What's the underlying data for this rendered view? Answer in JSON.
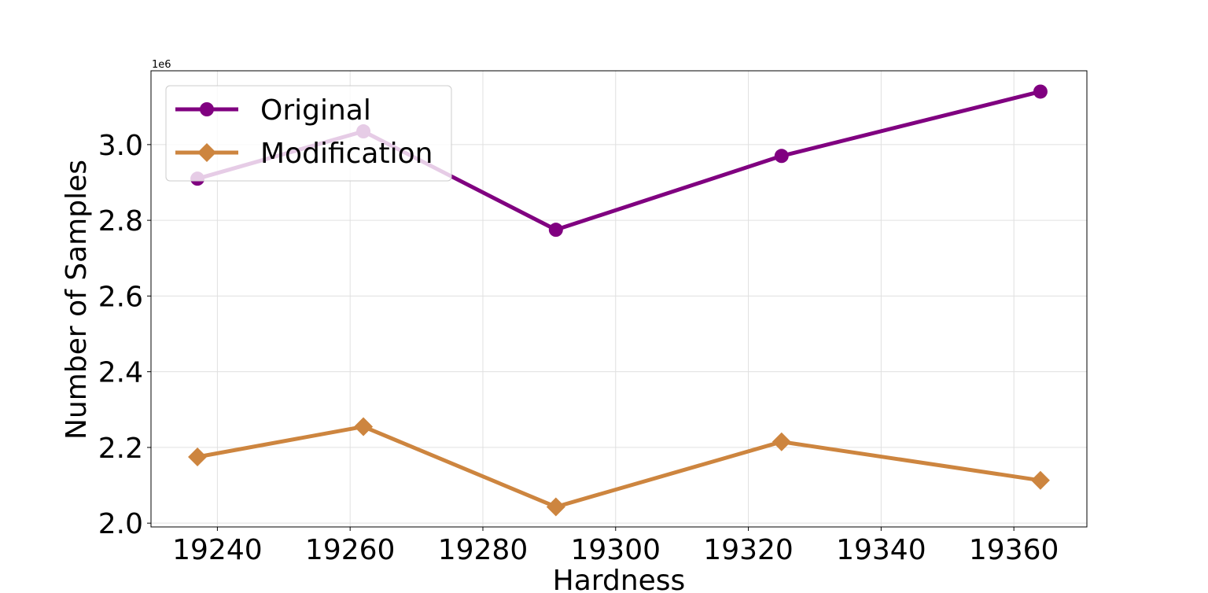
{
  "chart_data": {
    "type": "line",
    "xlabel": "Hardness",
    "ylabel": "Number of Samples",
    "y_offset_label": "1e6",
    "xlim": [
      19230,
      19371
    ],
    "ylim": [
      1.99,
      3.195
    ],
    "x_ticks": [
      19240,
      19260,
      19280,
      19300,
      19320,
      19340,
      19360
    ],
    "y_ticks": [
      2.0,
      2.2,
      2.4,
      2.6,
      2.8,
      3.0
    ],
    "y_tick_labels": [
      "2.0",
      "2.2",
      "2.4",
      "2.6",
      "2.8",
      "3.0"
    ],
    "grid": true,
    "legend_position": "upper-left",
    "x": [
      19237,
      19262,
      19291,
      19325,
      19364
    ],
    "series": [
      {
        "name": "Original",
        "color": "#800080",
        "marker": "circle",
        "values": [
          2.91,
          3.035,
          2.775,
          2.97,
          3.14
        ]
      },
      {
        "name": "Modification",
        "color": "#CD853F",
        "marker": "diamond",
        "values": [
          2.175,
          2.255,
          2.043,
          2.215,
          2.113
        ]
      }
    ]
  }
}
